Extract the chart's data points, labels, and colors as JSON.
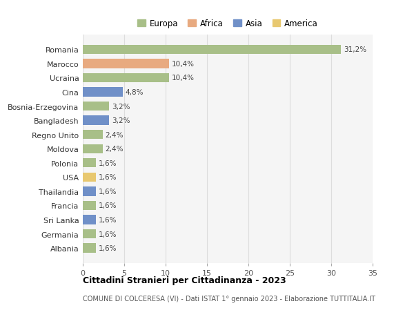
{
  "title": "Cittadini Stranieri per Cittadinanza - 2023",
  "subtitle": "COMUNE DI COLCERESA (VI) - Dati ISTAT 1° gennaio 2023 - Elaborazione TUTTITALIA.IT",
  "categories": [
    "Romania",
    "Marocco",
    "Ucraina",
    "Cina",
    "Bosnia-Erzegovina",
    "Bangladesh",
    "Regno Unito",
    "Moldova",
    "Polonia",
    "USA",
    "Thailandia",
    "Francia",
    "Sri Lanka",
    "Germania",
    "Albania"
  ],
  "values": [
    31.2,
    10.4,
    10.4,
    4.8,
    3.2,
    3.2,
    2.4,
    2.4,
    1.6,
    1.6,
    1.6,
    1.6,
    1.6,
    1.6,
    1.6
  ],
  "continents": [
    "Europa",
    "Africa",
    "Europa",
    "Asia",
    "Europa",
    "Asia",
    "Europa",
    "Europa",
    "Europa",
    "America",
    "Asia",
    "Europa",
    "Asia",
    "Europa",
    "Europa"
  ],
  "labels": [
    "31,2%",
    "10,4%",
    "10,4%",
    "4,8%",
    "3,2%",
    "3,2%",
    "2,4%",
    "2,4%",
    "1,6%",
    "1,6%",
    "1,6%",
    "1,6%",
    "1,6%",
    "1,6%",
    "1,6%"
  ],
  "continent_colors": {
    "Europa": "#a8bf88",
    "Africa": "#e8aa80",
    "Asia": "#7090c8",
    "America": "#e8c870"
  },
  "background_color": "#ffffff",
  "plot_bg_color": "#f5f5f5",
  "grid_color": "#dddddd",
  "xlim": [
    0,
    35
  ],
  "xticks": [
    0,
    5,
    10,
    15,
    20,
    25,
    30,
    35
  ],
  "bar_height": 0.65,
  "legend_order": [
    "Europa",
    "Africa",
    "Asia",
    "America"
  ]
}
